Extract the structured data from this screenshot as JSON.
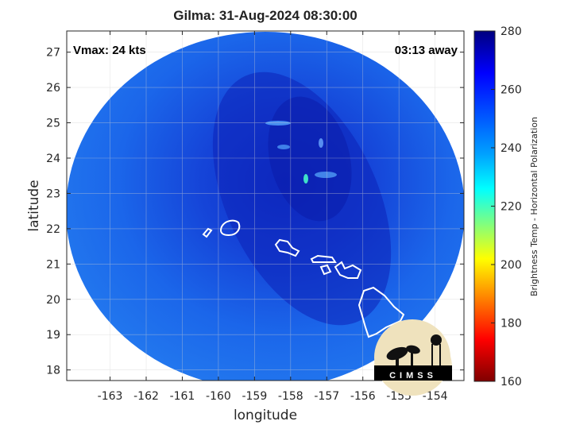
{
  "title": "Gilma: 31-Aug-2024 08:30:00",
  "vmax_label": "Vmax: 24 kts",
  "away_label": "03:13 away",
  "xlabel": "longitude",
  "ylabel": "latitude",
  "colorbar_label": "Brightness Temp - Horizontal Polarization",
  "logo_text": "CIMSS",
  "map": {
    "xlim": [
      -164.2,
      -153.2
    ],
    "ylim": [
      17.7,
      27.6
    ],
    "xticks": [
      -163,
      -162,
      -161,
      -160,
      -159,
      -158,
      -157,
      -156,
      -155,
      -154
    ],
    "yticks": [
      18,
      19,
      20,
      21,
      22,
      23,
      24,
      25,
      26,
      27
    ],
    "swath_center": [
      -158.7,
      22.7
    ],
    "background_color": "#1a62ea",
    "core_color": "#0c22b8"
  },
  "colorbar": {
    "range": [
      160,
      280
    ],
    "ticks": [
      280,
      260,
      240,
      220,
      200,
      180,
      160
    ],
    "colormap": "jet"
  },
  "islands": [
    {
      "name": "Niihau",
      "center": [
        -160.15,
        21.9
      ]
    },
    {
      "name": "Kauai",
      "center": [
        -159.5,
        22.05
      ]
    },
    {
      "name": "Oahu",
      "center": [
        -157.95,
        21.45
      ]
    },
    {
      "name": "Molokai",
      "center": [
        -157.0,
        21.15
      ]
    },
    {
      "name": "Maui",
      "center": [
        -156.3,
        20.8
      ]
    },
    {
      "name": "Hawaii",
      "center": [
        -155.5,
        19.6
      ]
    }
  ]
}
